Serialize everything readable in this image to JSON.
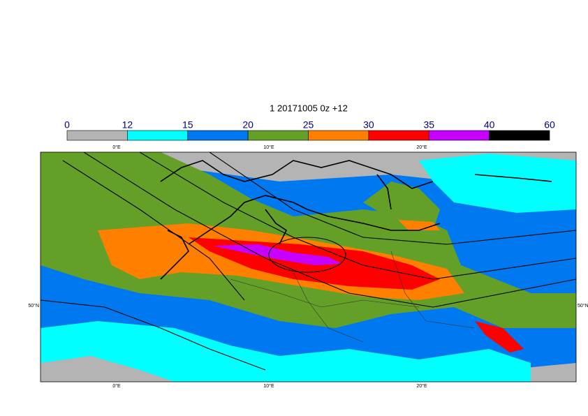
{
  "title": "1 20171005 0z +12",
  "colorbar": {
    "levels": [
      0,
      12,
      15,
      20,
      25,
      30,
      35,
      40,
      60
    ],
    "colors": [
      "#b4b4b4",
      "#00ffff",
      "#0078f0",
      "#64a028",
      "#ff8000",
      "#ff0000",
      "#c800ff",
      "#000000"
    ]
  },
  "map": {
    "lon_labels": [
      "0°E",
      "10°E",
      "20°E"
    ],
    "lat_labels": [
      "50°N"
    ]
  }
}
